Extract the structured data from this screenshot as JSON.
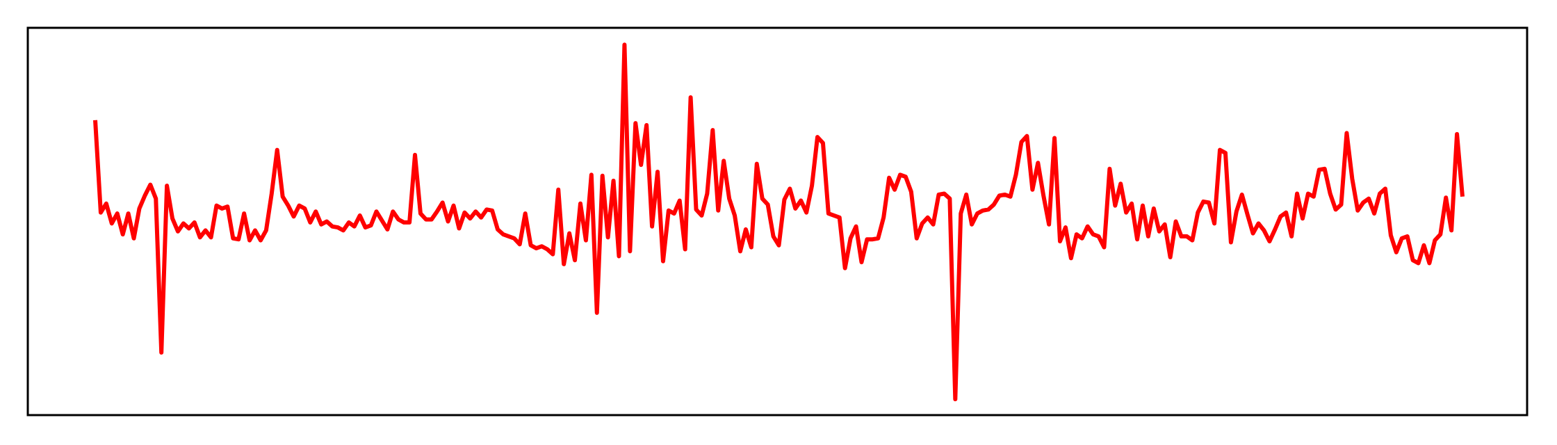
{
  "chart_data": {
    "type": "line",
    "color": "#ff0000",
    "ylim": [
      0,
      390
    ],
    "values": [
      297,
      204,
      213,
      193,
      203,
      182,
      203,
      178,
      208,
      221,
      232,
      218,
      63,
      231,
      198,
      185,
      193,
      188,
      194,
      179,
      186,
      179,
      211,
      208,
      210,
      178,
      177,
      203,
      176,
      186,
      176,
      186,
      223,
      267,
      220,
      211,
      200,
      211,
      208,
      194,
      205,
      192,
      195,
      190,
      189,
      186,
      194,
      190,
      201,
      189,
      191,
      205,
      196,
      187,
      205,
      197,
      194,
      194,
      262,
      203,
      197,
      197,
      205,
      214,
      195,
      211,
      188,
      204,
      198,
      205,
      199,
      207,
      206,
      187,
      182,
      180,
      178,
      172,
      203,
      171,
      168,
      170,
      167,
      162,
      227,
      152,
      183,
      156,
      213,
      176,
      242,
      103,
      241,
      179,
      236,
      160,
      373,
      165,
      294,
      252,
      292,
      190,
      245,
      155,
      206,
      203,
      216,
      167,
      320,
      207,
      201,
      223,
      287,
      206,
      256,
      218,
      201,
      165,
      187,
      169,
      253,
      218,
      212,
      180,
      171,
      217,
      228,
      208,
      216,
      204,
      231,
      280,
      274,
      203,
      201,
      199,
      148,
      178,
      190,
      154,
      177,
      177,
      178,
      199,
      239,
      227,
      242,
      240,
      225,
      178,
      193,
      199,
      192,
      222,
      223,
      218,
      16,
      203,
      222,
      192,
      203,
      206,
      207,
      212,
      221,
      222,
      220,
      242,
      275,
      281,
      227,
      254,
      221,
      192,
      279,
      175,
      189,
      158,
      182,
      178,
      190,
      182,
      180,
      169,
      248,
      211,
      233,
      204,
      213,
      177,
      211,
      180,
      208,
      185,
      192,
      159,
      195,
      180,
      180,
      176,
      204,
      215,
      214,
      193,
      267,
      264,
      174,
      205,
      222,
      202,
      183,
      193,
      186,
      175,
      187,
      200,
      204,
      180,
      223,
      198,
      223,
      220,
      247,
      248,
      223,
      207,
      212,
      284,
      238,
      206,
      214,
      218,
      203,
      223,
      228,
      181,
      164,
      178,
      180,
      156,
      153,
      171,
      153,
      176,
      182,
      219,
      186,
      283,
      220
    ]
  }
}
